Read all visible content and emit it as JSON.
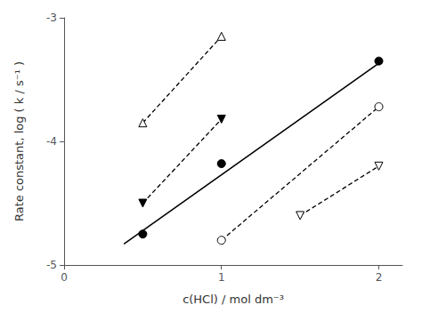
{
  "chart_data": {
    "type": "line",
    "x_label": "c(HCl) / mol dm⁻³",
    "y_label": "Rate constant, log ( k / s⁻¹ )",
    "xlim": [
      0,
      2.15
    ],
    "xticks": [
      0,
      1,
      2
    ],
    "ylim": [
      -5,
      -3
    ],
    "yticks": [
      -5,
      -4,
      -3
    ],
    "grid": false,
    "series": [
      {
        "type": "line",
        "color": "#000000",
        "marker": "none",
        "line_style": "solid",
        "x": [
          0.38,
          2.02
        ],
        "values": [
          -4.83,
          -3.35
        ]
      },
      {
        "type": "scatter",
        "color": "#000000",
        "marker": "filled_circle",
        "line_style": "none",
        "x": [
          0.5,
          1.0,
          2.0
        ],
        "values": [
          -4.75,
          -4.18,
          -3.35
        ]
      },
      {
        "type": "line",
        "color": "#000000",
        "marker": "filled_triangle_down",
        "line_style": "dashed",
        "x": [
          0.5,
          1.0
        ],
        "values": [
          -4.5,
          -3.82
        ]
      },
      {
        "type": "line",
        "color": "#000000",
        "marker": "open_triangle_up",
        "line_style": "dashed",
        "x": [
          0.5,
          1.0
        ],
        "values": [
          -3.85,
          -3.15
        ]
      },
      {
        "type": "line",
        "color": "#000000",
        "marker": "open_circle",
        "line_style": "dashed",
        "x": [
          1.0,
          2.0
        ],
        "values": [
          -4.8,
          -3.72
        ]
      },
      {
        "type": "line",
        "color": "#000000",
        "marker": "open_triangle_down",
        "line_style": "dashed",
        "x": [
          1.5,
          2.0
        ],
        "values": [
          -4.6,
          -4.2
        ]
      }
    ]
  }
}
